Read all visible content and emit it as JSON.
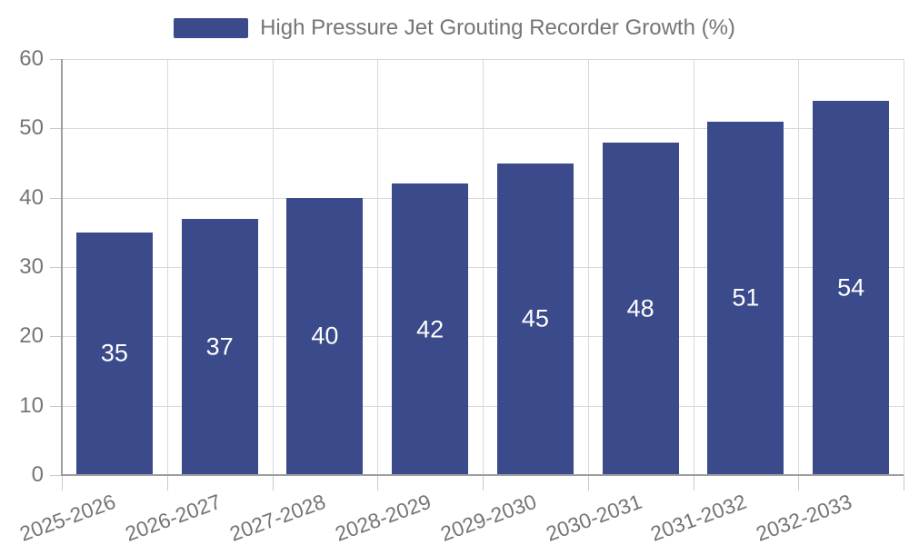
{
  "chart_data": {
    "type": "bar",
    "legend_label": "High Pressure Jet Grouting Recorder Growth (%)",
    "legend_position": "top",
    "categories": [
      "2025-2026",
      "2026-2027",
      "2027-2028",
      "2028-2029",
      "2029-2030",
      "2030-2031",
      "2031-2032",
      "2032-2033"
    ],
    "values": [
      35,
      37,
      40,
      42,
      45,
      48,
      51,
      54
    ],
    "xlabel": "",
    "ylabel": "",
    "ylim": [
      0,
      60
    ],
    "yticks": [
      0,
      10,
      20,
      30,
      40,
      50,
      60
    ],
    "grid": "horizontal and vertical",
    "value_labels": "inside-center, white",
    "colors": {
      "bar": "#3A4A8A",
      "bar_label": "#ffffff",
      "legend_text": "#757575",
      "axis_text": "#757575",
      "axis_line": "#9e9e9e",
      "gridline": "#d9d9d9",
      "tick": "#c9c9c9",
      "background": "#ffffff"
    }
  }
}
